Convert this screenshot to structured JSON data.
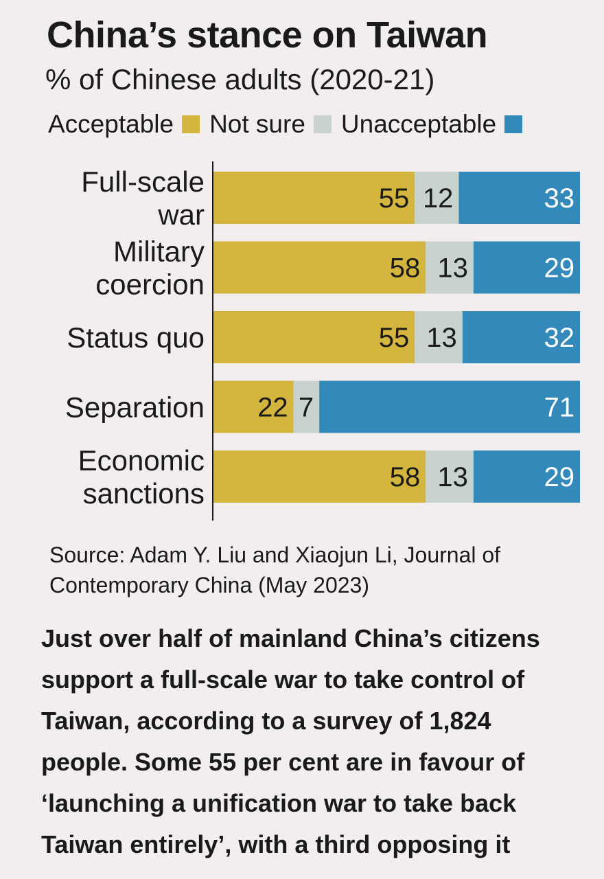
{
  "chart_data": {
    "type": "bar",
    "orientation": "horizontal",
    "stacked": true,
    "title": "China’s stance on Taiwan",
    "subtitle": "% of Chinese adults (2020-21)",
    "legend_position": "top",
    "categories": [
      [
        "Full-scale",
        "war"
      ],
      [
        "Military",
        "coercion"
      ],
      [
        "Status quo"
      ],
      [
        "Separation"
      ],
      [
        "Economic",
        "sanctions"
      ]
    ],
    "series": [
      {
        "name": "Acceptable",
        "color": "#d4b53d",
        "values": [
          55,
          58,
          55,
          22,
          58
        ]
      },
      {
        "name": "Not sure",
        "color": "#c9d3ce",
        "values": [
          12,
          13,
          13,
          7,
          13
        ]
      },
      {
        "name": "Unacceptable",
        "color": "#3389b9",
        "values": [
          33,
          29,
          32,
          71,
          29
        ]
      }
    ],
    "xlim": [
      0,
      100
    ]
  },
  "source": {
    "lines": [
      "Source: Adam Y. Liu and Xiaojun Li, Journal of",
      "Contemporary China (May 2023)"
    ]
  },
  "body_text": {
    "lines": [
      "Just over half of mainland China’s citizens",
      "support a full-scale war to take control of",
      "Taiwan, according to a survey of 1,824",
      "people. Some 55 per cent are in favour of",
      "‘launching a unification war to take back",
      "Taiwan entirely’, with a third opposing it"
    ]
  }
}
